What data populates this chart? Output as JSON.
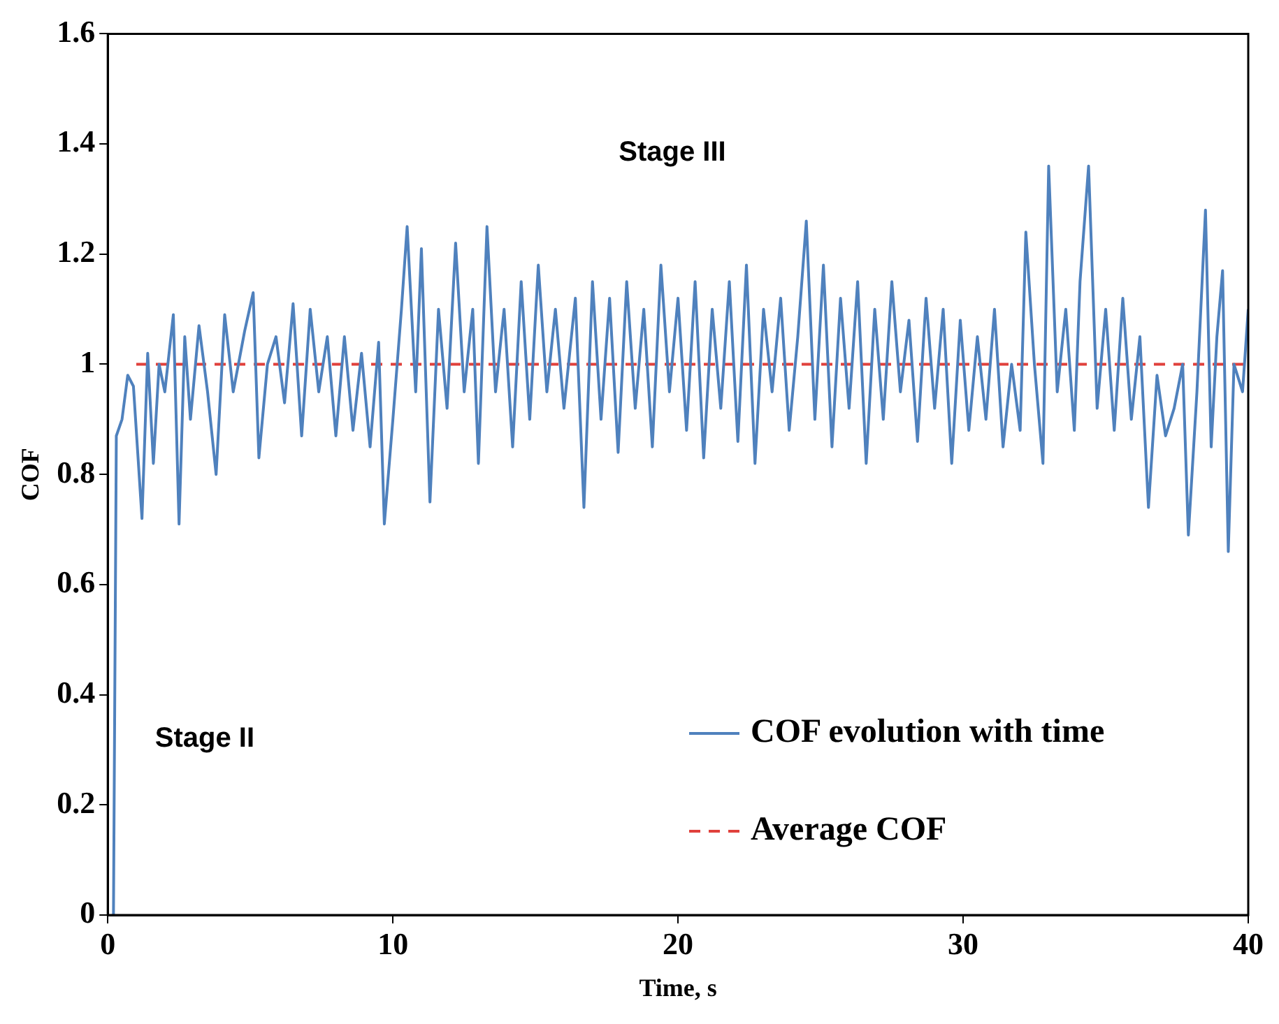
{
  "chart_data": {
    "type": "line",
    "xlabel": "Time, s",
    "ylabel": "COF",
    "xlim": [
      0,
      40
    ],
    "ylim": [
      0,
      1.6
    ],
    "xticks": [
      0,
      10,
      20,
      30,
      40
    ],
    "yticks": [
      0,
      0.2,
      0.4,
      0.6,
      0.8,
      1,
      1.2,
      1.4,
      1.6
    ],
    "grid": false,
    "legend": "bottom right",
    "marker": "none",
    "annotations": [
      "Stage III",
      "Stage II"
    ],
    "series": [
      {
        "name": "COF evolution with time",
        "color": "#4f81bd",
        "line_style": "solid",
        "x": [
          0.2,
          0.3,
          0.5,
          0.7,
          0.9,
          1.2,
          1.4,
          1.6,
          1.8,
          2.0,
          2.3,
          2.5,
          2.7,
          2.9,
          3.2,
          3.5,
          3.8,
          4.1,
          4.4,
          4.8,
          5.1,
          5.3,
          5.6,
          5.9,
          6.2,
          6.5,
          6.8,
          7.1,
          7.4,
          7.7,
          8.0,
          8.3,
          8.6,
          8.9,
          9.2,
          9.5,
          9.7,
          10.0,
          10.3,
          10.5,
          10.8,
          11.0,
          11.3,
          11.6,
          11.9,
          12.2,
          12.5,
          12.8,
          13.0,
          13.3,
          13.6,
          13.9,
          14.2,
          14.5,
          14.8,
          15.1,
          15.4,
          15.7,
          16.0,
          16.4,
          16.7,
          17.0,
          17.3,
          17.6,
          17.9,
          18.2,
          18.5,
          18.8,
          19.1,
          19.4,
          19.7,
          20.0,
          20.3,
          20.6,
          20.9,
          21.2,
          21.5,
          21.8,
          22.1,
          22.4,
          22.7,
          23.0,
          23.3,
          23.6,
          23.9,
          24.2,
          24.5,
          24.8,
          25.1,
          25.4,
          25.7,
          26.0,
          26.3,
          26.6,
          26.9,
          27.2,
          27.5,
          27.8,
          28.1,
          28.4,
          28.7,
          29.0,
          29.3,
          29.6,
          29.9,
          30.2,
          30.5,
          30.8,
          31.1,
          31.4,
          31.7,
          32.0,
          32.2,
          32.5,
          32.8,
          33.0,
          33.3,
          33.6,
          33.9,
          34.1,
          34.4,
          34.7,
          35.0,
          35.3,
          35.6,
          35.9,
          36.2,
          36.5,
          36.8,
          37.1,
          37.4,
          37.7,
          37.9,
          38.2,
          38.5,
          38.7,
          38.9,
          39.1,
          39.3,
          39.5,
          39.8,
          40.0
        ],
        "values": [
          0,
          0.87,
          0.9,
          0.98,
          0.96,
          0.72,
          1.02,
          0.82,
          1.0,
          0.95,
          1.09,
          0.71,
          1.05,
          0.9,
          1.07,
          0.95,
          0.8,
          1.09,
          0.95,
          1.06,
          1.13,
          0.83,
          1.0,
          1.05,
          0.93,
          1.11,
          0.87,
          1.1,
          0.95,
          1.05,
          0.87,
          1.05,
          0.88,
          1.02,
          0.85,
          1.04,
          0.71,
          0.9,
          1.1,
          1.25,
          0.95,
          1.21,
          0.75,
          1.1,
          0.92,
          1.22,
          0.95,
          1.1,
          0.82,
          1.25,
          0.95,
          1.1,
          0.85,
          1.15,
          0.9,
          1.18,
          0.95,
          1.1,
          0.92,
          1.12,
          0.74,
          1.15,
          0.9,
          1.12,
          0.84,
          1.15,
          0.92,
          1.1,
          0.85,
          1.18,
          0.95,
          1.12,
          0.88,
          1.15,
          0.83,
          1.1,
          0.92,
          1.15,
          0.86,
          1.18,
          0.82,
          1.1,
          0.95,
          1.12,
          0.88,
          1.05,
          1.26,
          0.9,
          1.18,
          0.85,
          1.12,
          0.92,
          1.15,
          0.82,
          1.1,
          0.9,
          1.15,
          0.95,
          1.08,
          0.86,
          1.12,
          0.92,
          1.1,
          0.82,
          1.08,
          0.88,
          1.05,
          0.9,
          1.1,
          0.85,
          1.0,
          0.88,
          1.24,
          1.0,
          0.82,
          1.36,
          0.95,
          1.1,
          0.88,
          1.15,
          1.36,
          0.92,
          1.1,
          0.88,
          1.12,
          0.9,
          1.05,
          0.74,
          0.98,
          0.87,
          0.92,
          1.0,
          0.69,
          0.95,
          1.28,
          0.85,
          1.05,
          1.17,
          0.66,
          1.0,
          0.95,
          1.1
        ]
      },
      {
        "name": "Average COF",
        "color": "#e0413c",
        "line_style": "dashed",
        "x": [
          1,
          40
        ],
        "values": [
          1,
          1
        ]
      }
    ]
  }
}
